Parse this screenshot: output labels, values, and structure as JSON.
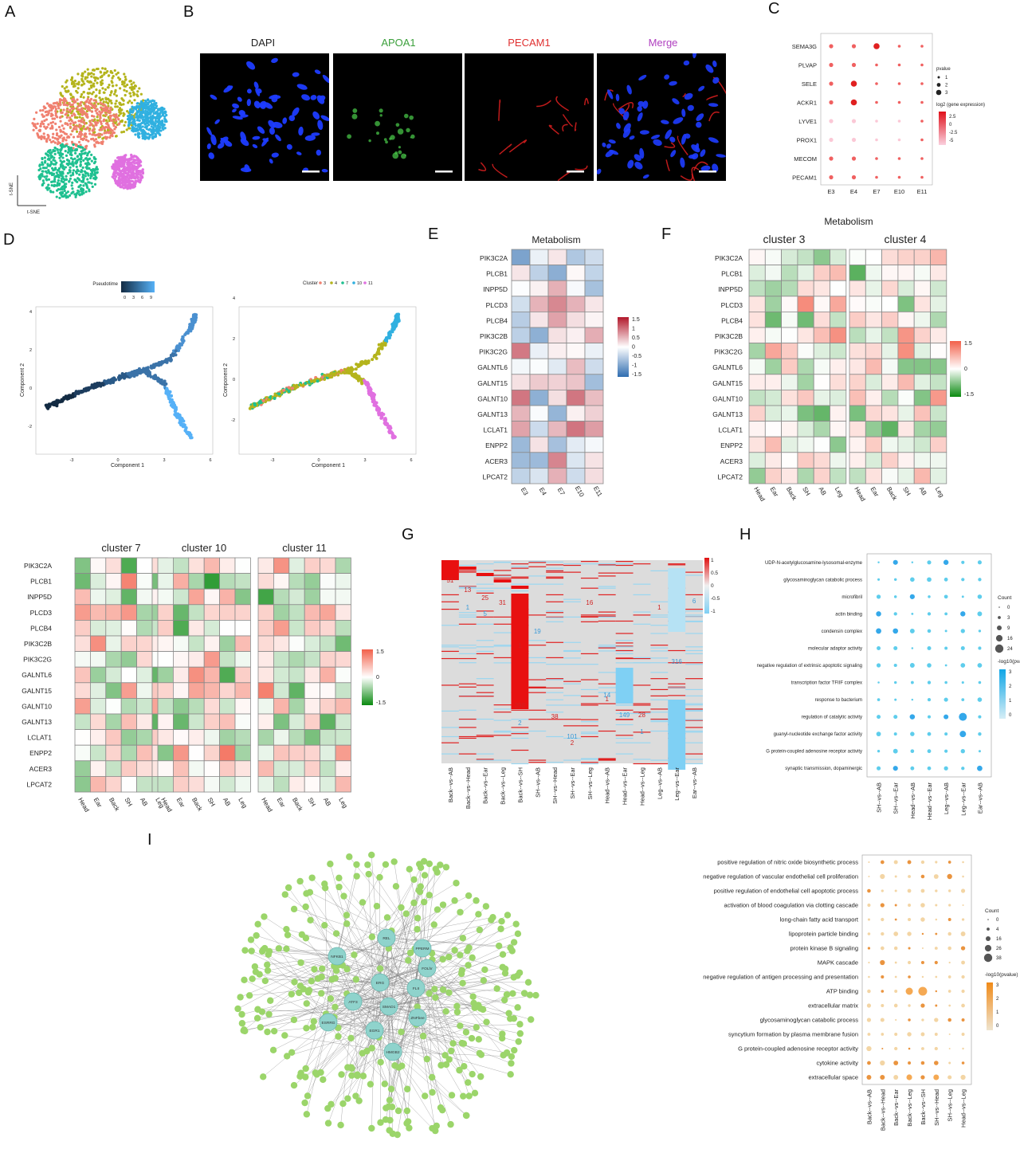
{
  "panel_labels": [
    "A",
    "B",
    "C",
    "D",
    "E",
    "F",
    "G",
    "H",
    "I"
  ],
  "panelA": {
    "ylab": "t-SNE",
    "xlab": "t-SNE",
    "clusters": [
      "3",
      "4",
      "7",
      "10",
      "11"
    ],
    "colors": [
      "#f08070",
      "#b4b41c",
      "#1fc090",
      "#30b0e0",
      "#e070e0"
    ]
  },
  "panelB": {
    "channels": [
      {
        "name": "DAPI",
        "color": "#333333"
      },
      {
        "name": "APOA1",
        "color": "#3ca03c"
      },
      {
        "name": "PECAM1",
        "color": "#e03030"
      },
      {
        "name": "Merge",
        "color": "#b040c0"
      }
    ]
  },
  "panelC": {
    "genes": [
      "SEMA3G",
      "PLVAP",
      "SELE",
      "ACKR1",
      "LYVE1",
      "PROX1",
      "MECOM",
      "PECAM1"
    ],
    "stages": [
      "E3",
      "E4",
      "E7",
      "E10",
      "E11"
    ],
    "size_legend_title": "pvalue",
    "size_legend": [
      "1",
      "2",
      "3"
    ],
    "color_legend_title": "log2 (gene expression)",
    "color_legend": [
      "2.5",
      "0",
      "-2.5",
      "-5"
    ]
  },
  "panelD": {
    "left_legend_title": "Pseudotime",
    "left_ticks": [
      "0",
      "3",
      "6",
      "9"
    ],
    "right_legend_title": "Cluster",
    "right_items": [
      "3",
      "4",
      "7",
      "10",
      "11"
    ],
    "xlabel": "Component 1",
    "ylabel": "Component 2",
    "xticks": [
      "-3",
      "0",
      "3",
      "6"
    ],
    "yticks_left": [
      "4",
      "2",
      "0",
      "-2"
    ],
    "yticks_right": [
      "4",
      "2",
      "0",
      "-2"
    ]
  },
  "metab_genes": [
    "PIK3C2A",
    "PLCB1",
    "INPP5D",
    "PLCD3",
    "PLCB4",
    "PIK3C2B",
    "PIK3C2G",
    "GALNTL6",
    "GALNT15",
    "GALNT10",
    "GALNT13",
    "LCLAT1",
    "ENPP2",
    "ACER3",
    "LPCAT2"
  ],
  "regions": [
    "Head",
    "Ear",
    "Back",
    "SH",
    "AB",
    "Leg"
  ],
  "panelE": {
    "title": "Metabolism",
    "stages": [
      "E3",
      "E4",
      "E7",
      "E10",
      "E11"
    ],
    "legend": [
      "1.5",
      "1",
      "0.5",
      "0",
      "-0.5",
      "-1",
      "-1.5"
    ]
  },
  "panelF": {
    "title": "Metabolism",
    "clusters": [
      "cluster 3",
      "cluster 4"
    ],
    "legend": [
      "1.5",
      "0",
      "-1.5"
    ]
  },
  "panelFb": {
    "clusters": [
      "cluster 7",
      "cluster 10",
      "cluster 11"
    ],
    "legend": [
      "1.5",
      "0",
      "-1.5"
    ]
  },
  "panelG": {
    "comparisons": [
      "Back--vs--AB",
      "Back--vs--Head",
      "Back--vs--Ear",
      "Back--vs--Leg",
      "Back--vs--SH",
      "SH--vs--AB",
      "SH--vs--Head",
      "SH--vs--Ear",
      "SH--vs--Leg",
      "Head--vs--AB",
      "Head--vs--Ear",
      "Head--vs--Leg",
      "Leg--vs--AB",
      "Leg--vs--Ear",
      "Ear--vs--AB"
    ],
    "legend": [
      "1",
      "0.5",
      "0",
      "-0.5",
      "-1"
    ],
    "up_counts": [
      "51",
      "13",
      "25",
      "31",
      "298",
      "1",
      "16",
      "38",
      "1",
      "2",
      "28",
      "1"
    ],
    "down_counts": [
      "1",
      "5",
      "19",
      "2",
      "6",
      "316",
      "14",
      "149",
      "101",
      "1",
      "6"
    ]
  },
  "panelH": {
    "terms": [
      "UDP-N-acetylglucosamine-lysosomal-enzyme",
      "glycosaminoglycan catabolic process",
      "microfibril",
      "actin binding",
      "condensin complex",
      "molecular adaptor activity",
      "negative regulation of extrinsic apoptotic signaling",
      "transcription factor TFIIF complex",
      "response to bacterium",
      "regulation of catalytic activity",
      "guanyl-nucleotide exchange factor activity",
      "G protein-coupled adenosine receptor activity",
      "synaptic transmission, dopaminergic"
    ],
    "comparisons": [
      "SH--vs--AB",
      "SH--vs--Ear",
      "Head--vs--AB",
      "Head--vs--Ear",
      "Leg--vs--AB",
      "Leg--vs--Ear",
      "Ear--vs--AB"
    ],
    "count_title": "Count",
    "counts": [
      "0",
      "3",
      "9",
      "16",
      "24"
    ],
    "p_title": "-log10(pvalue)",
    "p_ticks": [
      "3",
      "2",
      "1",
      "0"
    ]
  },
  "panelI": {
    "tfs": [
      "REL",
      "PPERM",
      "NFKB1",
      "FOLhr",
      "ERG",
      "FLII",
      "ATF3",
      "SMAD1",
      "ZNFbee",
      "ESRRG",
      "EGR1",
      "HMGB2"
    ],
    "terms": [
      "positive regulation of nitric oxide biosynthetic process",
      "negative regulation of vascular endothelial cell proliferation",
      "positive regulation of endothelial cell apoptotic process",
      "activation of blood coagulation via clotting cascade",
      "long-chain fatty acid transport",
      "lipoprotein particle binding",
      "protein kinase B signaling",
      "MAPK cascade",
      "negative regulation of antigen processing and presentation",
      "ATP binding",
      "extracellular matrix",
      "glycosaminoglycan catabolic process",
      "syncytium formation by plasma membrane fusion",
      "G protein-coupled adenosine receptor activity",
      "cytokine activity",
      "extracellular space"
    ],
    "comparisons": [
      "Back--vs--AB",
      "Back--vs--Head",
      "Back--vs--Ear",
      "Back--vs--Leg",
      "Back--vs--SH",
      "SH--vs--Head",
      "SH--vs--Leg",
      "Head--vs--Leg"
    ],
    "count_title": "Count",
    "counts": [
      "0",
      "4",
      "16",
      "26",
      "38"
    ],
    "p_title": "-log10(pvalue)",
    "p_ticks": [
      "3",
      "2",
      "1",
      "0"
    ]
  }
}
